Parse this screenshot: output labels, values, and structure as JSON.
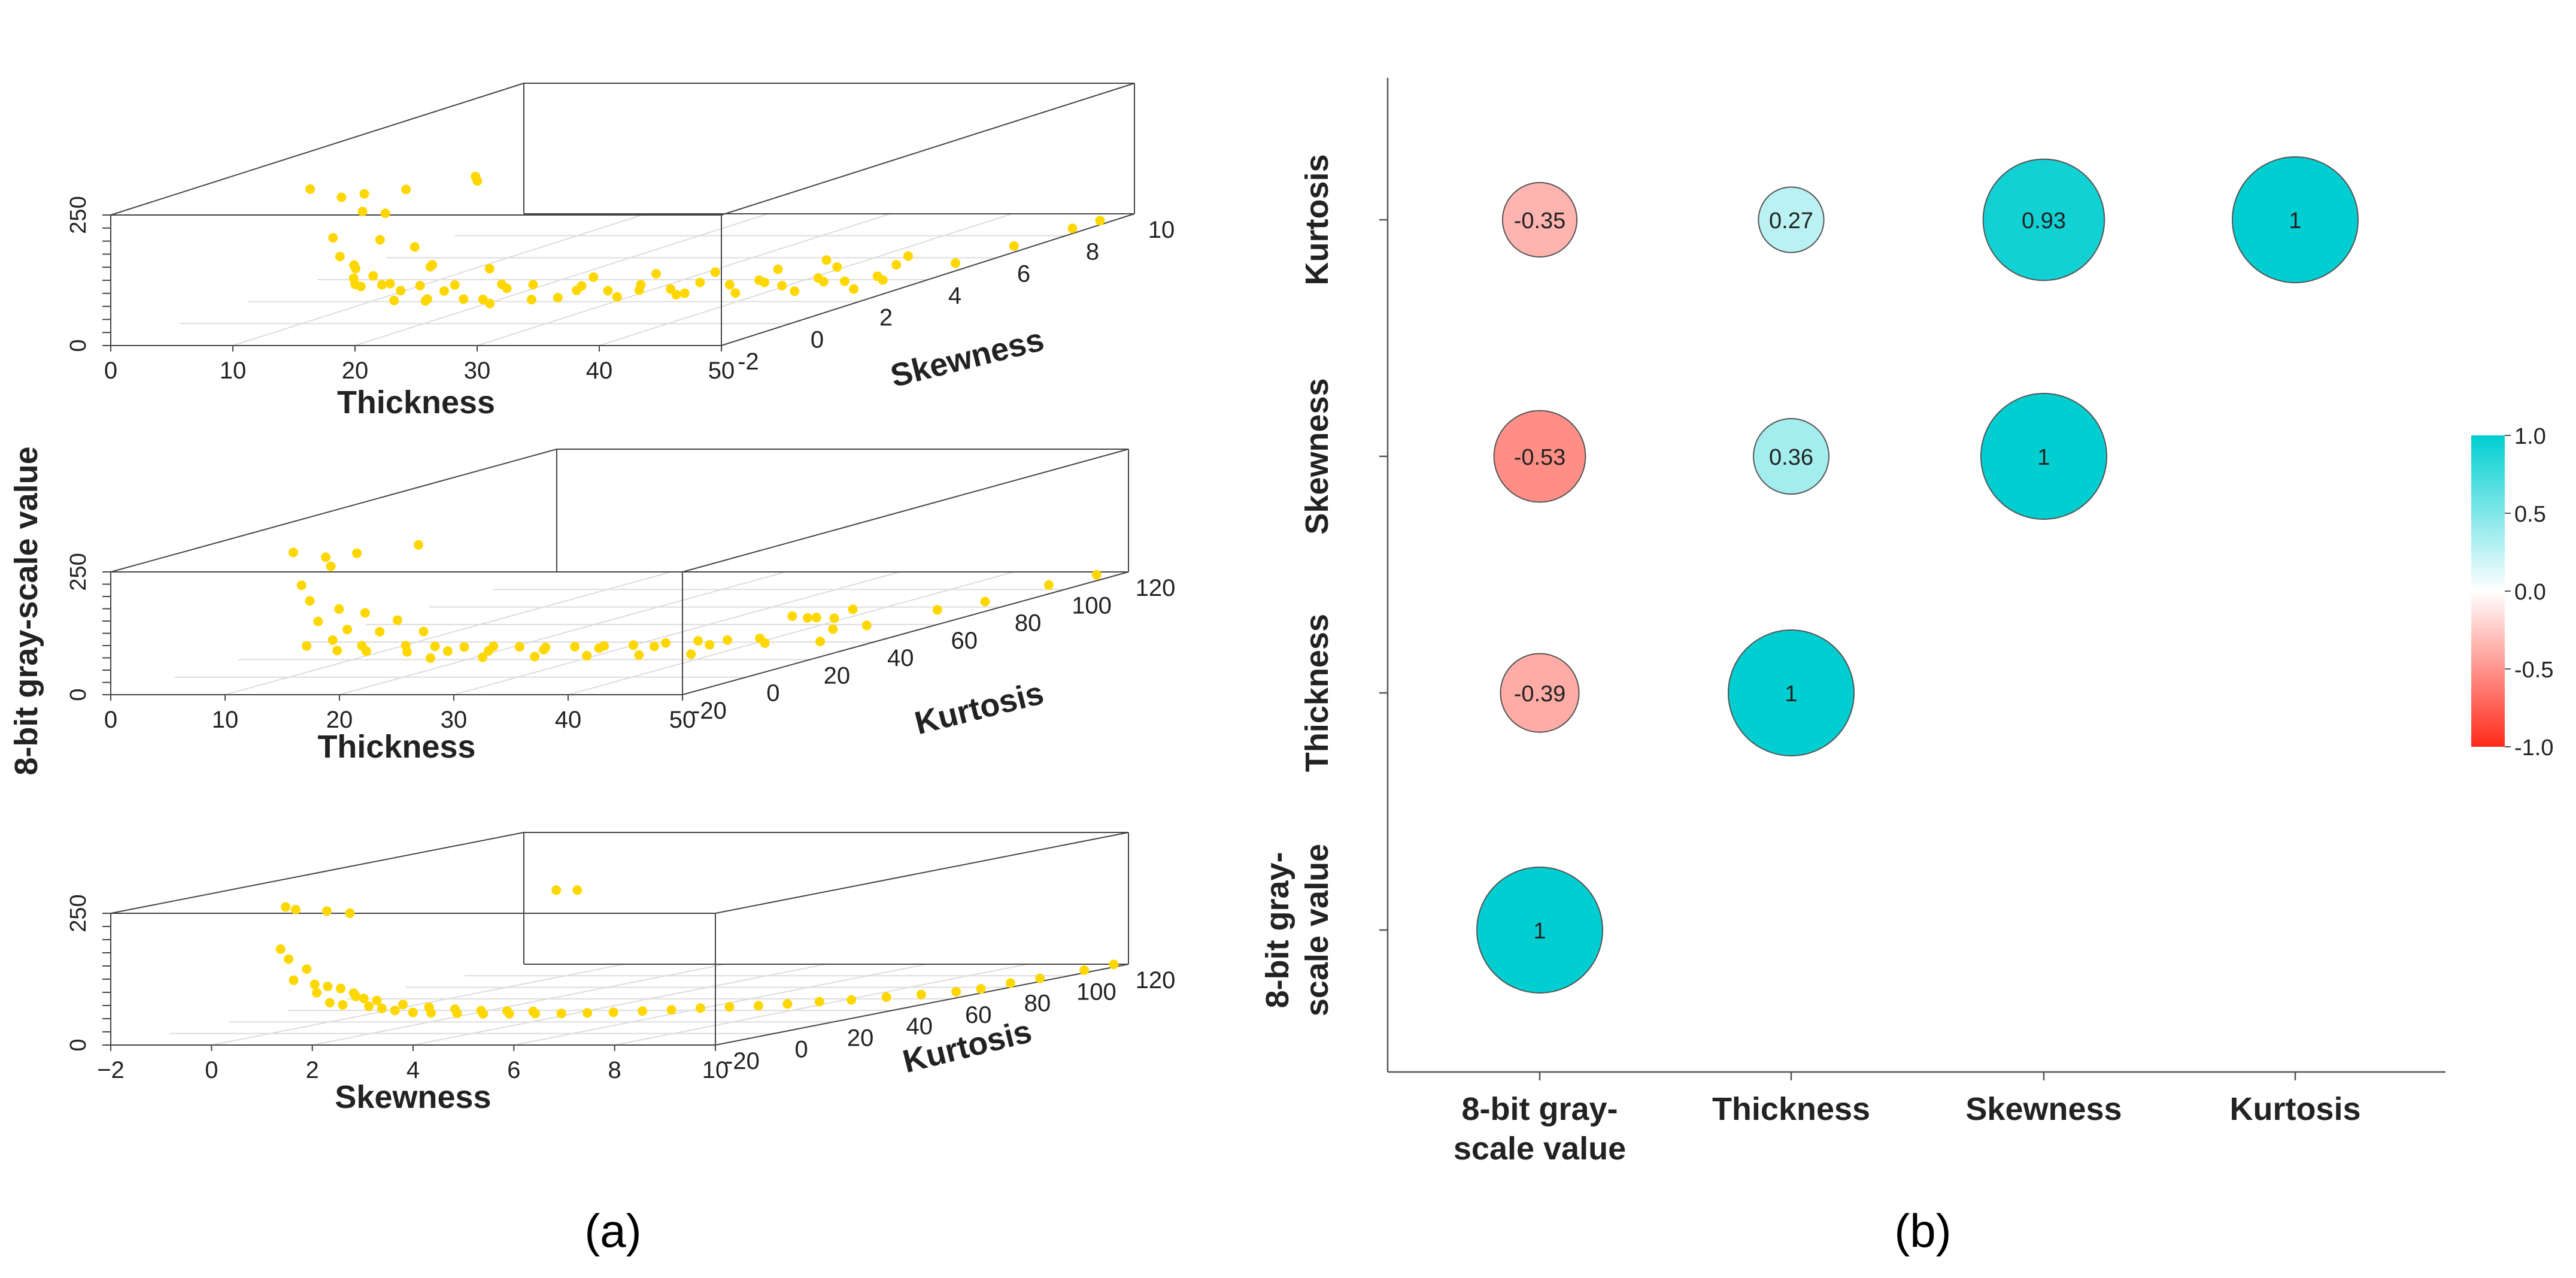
{
  "figure": {
    "panel_a_label": "(a)",
    "panel_b_label": "(b)",
    "shared_z_label": "8-bit gray-scale value"
  },
  "chart_data": [
    {
      "type": "scatter",
      "panel": "a1",
      "xlabel": "Thickness",
      "ylabel": "Skewness",
      "zlabel": "8-bit gray-scale value",
      "xlim": [
        0,
        50
      ],
      "ylim": [
        -2,
        10
      ],
      "zlim": [
        0,
        250
      ],
      "x_ticks": [
        "0",
        "10",
        "20",
        "30",
        "40",
        "50"
      ],
      "y_ticks": [
        "-2",
        "0",
        "2",
        "4",
        "6",
        "8",
        "10"
      ],
      "z_ticks": [
        "0",
        "250"
      ],
      "color": "#FFD700",
      "points": [
        [
          9,
          0.6,
          245
        ],
        [
          11,
          0.8,
          225
        ],
        [
          14,
          0.4,
          240
        ],
        [
          16,
          0.9,
          238
        ],
        [
          20,
          1.5,
          250
        ],
        [
          21,
          1.2,
          248
        ],
        [
          13,
          0.7,
          200
        ],
        [
          16,
          0.3,
          205
        ],
        [
          12,
          0.2,
          160
        ],
        [
          15,
          0.5,
          150
        ],
        [
          12,
          0.4,
          120
        ],
        [
          14,
          0.1,
          110
        ],
        [
          17,
          0.8,
          130
        ],
        [
          19,
          0.6,
          100
        ],
        [
          15,
          0.3,
          85
        ],
        [
          18,
          0.9,
          90
        ],
        [
          22,
          1.2,
          80
        ],
        [
          13,
          0.5,
          95
        ],
        [
          16,
          0.2,
          70
        ],
        [
          18,
          0.6,
          60
        ],
        [
          20,
          0.9,
          55
        ],
        [
          23,
          1.2,
          50
        ],
        [
          25,
          1.4,
          45
        ],
        [
          12,
          0.8,
          70
        ],
        [
          14,
          0.3,
          65
        ],
        [
          17,
          0.2,
          40
        ],
        [
          19,
          0.4,
          35
        ],
        [
          21,
          0.8,
          30
        ],
        [
          24,
          0.5,
          28
        ],
        [
          26,
          1.0,
          25
        ],
        [
          28,
          1.6,
          30
        ],
        [
          30,
          1.8,
          25
        ],
        [
          32,
          2.0,
          22
        ],
        [
          34,
          2.2,
          20
        ],
        [
          36,
          1.9,
          18
        ],
        [
          38,
          2.5,
          22
        ],
        [
          40,
          2.8,
          20
        ],
        [
          42,
          2.6,
          18
        ],
        [
          44,
          3.1,
          15
        ],
        [
          46,
          3.0,
          18
        ],
        [
          48,
          3.4,
          12
        ],
        [
          11,
          1.2,
          50
        ],
        [
          13,
          1.5,
          45
        ],
        [
          15,
          1.1,
          40
        ],
        [
          18,
          1.3,
          35
        ],
        [
          22,
          1.7,
          32
        ],
        [
          27,
          2.1,
          28
        ],
        [
          31,
          2.4,
          24
        ],
        [
          35,
          2.7,
          22
        ],
        [
          39,
          3.0,
          20
        ],
        [
          43,
          3.3,
          18
        ],
        [
          47,
          3.6,
          15
        ],
        [
          20,
          0.1,
          45
        ],
        [
          24,
          0.3,
          40
        ],
        [
          29,
          0.7,
          35
        ],
        [
          33,
          1.0,
          30
        ],
        [
          37,
          1.3,
          28
        ],
        [
          41,
          1.6,
          25
        ],
        [
          45,
          1.9,
          22
        ],
        [
          49,
          2.2,
          20
        ],
        [
          26,
          2.8,
          30
        ],
        [
          30,
          3.2,
          28
        ],
        [
          34,
          3.5,
          25
        ],
        [
          38,
          3.9,
          22
        ],
        [
          42,
          4.2,
          20
        ],
        [
          46,
          4.5,
          18
        ],
        [
          50,
          4.8,
          15
        ],
        [
          50,
          6.5,
          12
        ],
        [
          50,
          8.2,
          10
        ],
        [
          50,
          9.0,
          8
        ],
        [
          45,
          5.2,
          20
        ],
        [
          40,
          4.6,
          25
        ]
      ]
    },
    {
      "type": "scatter",
      "panel": "a2",
      "xlabel": "Thickness",
      "ylabel": "Kurtosis",
      "zlabel": "8-bit gray-scale value",
      "xlim": [
        0,
        50
      ],
      "ylim": [
        -20,
        120
      ],
      "zlim": [
        0,
        250
      ],
      "x_ticks": [
        "0",
        "10",
        "20",
        "30",
        "40",
        "50"
      ],
      "y_ticks": [
        "-20",
        "0",
        "20",
        "40",
        "60",
        "80",
        "100",
        "120"
      ],
      "z_ticks": [
        "0",
        "250"
      ],
      "color": "#FFD700",
      "points": [
        [
          9,
          5,
          245
        ],
        [
          11,
          8,
          230
        ],
        [
          12,
          6,
          215
        ],
        [
          14,
          7,
          240
        ],
        [
          18,
          12,
          248
        ],
        [
          10,
          4,
          180
        ],
        [
          11,
          3,
          150
        ],
        [
          13,
          5,
          130
        ],
        [
          12,
          2,
          110
        ],
        [
          15,
          6,
          120
        ],
        [
          17,
          9,
          100
        ],
        [
          14,
          4,
          90
        ],
        [
          16,
          7,
          80
        ],
        [
          19,
          10,
          75
        ],
        [
          13,
          3,
          70
        ],
        [
          11,
          2,
          60
        ],
        [
          15,
          5,
          55
        ],
        [
          18,
          8,
          50
        ],
        [
          20,
          10,
          45
        ],
        [
          22,
          12,
          40
        ],
        [
          24,
          14,
          38
        ],
        [
          26,
          15,
          35
        ],
        [
          28,
          16,
          32
        ],
        [
          30,
          18,
          30
        ],
        [
          32,
          20,
          28
        ],
        [
          34,
          22,
          26
        ],
        [
          36,
          25,
          25
        ],
        [
          38,
          28,
          24
        ],
        [
          40,
          30,
          22
        ],
        [
          42,
          33,
          20
        ],
        [
          44,
          36,
          60
        ],
        [
          45,
          40,
          50
        ],
        [
          46,
          42,
          45
        ],
        [
          47,
          38,
          30
        ],
        [
          48,
          45,
          25
        ],
        [
          12,
          8,
          40
        ],
        [
          14,
          10,
          35
        ],
        [
          17,
          12,
          30
        ],
        [
          20,
          14,
          28
        ],
        [
          23,
          16,
          25
        ],
        [
          27,
          19,
          22
        ],
        [
          31,
          22,
          20
        ],
        [
          35,
          25,
          18
        ],
        [
          39,
          28,
          16
        ],
        [
          43,
          31,
          14
        ],
        [
          47,
          34,
          12
        ],
        [
          21,
          5,
          30
        ],
        [
          25,
          7,
          28
        ],
        [
          29,
          9,
          26
        ],
        [
          33,
          11,
          24
        ],
        [
          37,
          13,
          22
        ],
        [
          41,
          15,
          20
        ],
        [
          50,
          60,
          30
        ],
        [
          50,
          75,
          20
        ],
        [
          50,
          95,
          18
        ],
        [
          50,
          110,
          12
        ],
        [
          44,
          55,
          40
        ],
        [
          42,
          48,
          35
        ]
      ]
    },
    {
      "type": "scatter",
      "panel": "a3",
      "xlabel": "Skewness",
      "ylabel": "Kurtosis",
      "zlabel": "8-bit gray-scale value",
      "xlim": [
        -2,
        10
      ],
      "ylim": [
        -20,
        120
      ],
      "zlim": [
        0,
        250
      ],
      "x_ticks": [
        "−2",
        "0",
        "2",
        "4",
        "6",
        "8",
        "10"
      ],
      "y_ticks": [
        "-20",
        "0",
        "20",
        "40",
        "60",
        "80",
        "100",
        "120"
      ],
      "z_ticks": [
        "0",
        "250"
      ],
      "color": "#FFD700",
      "points": [
        [
          0.3,
          0,
          240
        ],
        [
          0.5,
          0,
          235
        ],
        [
          1.0,
          2,
          230
        ],
        [
          1.4,
          3,
          225
        ],
        [
          4.5,
          20,
          250
        ],
        [
          4.8,
          22,
          248
        ],
        [
          0.2,
          0,
          160
        ],
        [
          0.3,
          1,
          140
        ],
        [
          0.6,
          2,
          120
        ],
        [
          0.4,
          1,
          100
        ],
        [
          0.7,
          3,
          90
        ],
        [
          0.9,
          4,
          85
        ],
        [
          1.1,
          5,
          80
        ],
        [
          1.3,
          6,
          70
        ],
        [
          1.5,
          6,
          60
        ],
        [
          0.8,
          2,
          75
        ],
        [
          1.0,
          3,
          55
        ],
        [
          1.2,
          4,
          50
        ],
        [
          1.6,
          6,
          45
        ],
        [
          1.8,
          7,
          40
        ],
        [
          2.0,
          8,
          35
        ],
        [
          2.3,
          9,
          30
        ],
        [
          2.6,
          10,
          28
        ],
        [
          3.0,
          12,
          25
        ],
        [
          3.4,
          14,
          22
        ],
        [
          3.8,
          16,
          20
        ],
        [
          4.2,
          18,
          18
        ],
        [
          4.6,
          20,
          16
        ],
        [
          5.0,
          22,
          15
        ],
        [
          5.4,
          24,
          14
        ],
        [
          5.8,
          27,
          13
        ],
        [
          6.2,
          30,
          12
        ],
        [
          6.6,
          33,
          12
        ],
        [
          7.0,
          36,
          11
        ],
        [
          7.4,
          39,
          10
        ],
        [
          7.8,
          42,
          10
        ],
        [
          8.2,
          46,
          10
        ],
        [
          8.6,
          50,
          9
        ],
        [
          9.0,
          55,
          9
        ],
        [
          9.4,
          60,
          8
        ],
        [
          9.8,
          65,
          8
        ],
        [
          10,
          70,
          8
        ],
        [
          10,
          80,
          8
        ],
        [
          10,
          90,
          6
        ],
        [
          10,
          105,
          5
        ],
        [
          10,
          115,
          5
        ],
        [
          1.4,
          5,
          65
        ],
        [
          1.7,
          7,
          55
        ],
        [
          2.1,
          9,
          45
        ],
        [
          2.5,
          11,
          38
        ],
        [
          2.9,
          13,
          32
        ],
        [
          3.3,
          15,
          27
        ],
        [
          3.7,
          17,
          24
        ],
        [
          4.1,
          19,
          21
        ]
      ]
    },
    {
      "type": "heatmap",
      "panel": "b",
      "style": "correlation bubble matrix",
      "variables": [
        "8-bit gray-scale value",
        "Thickness",
        "Skewness",
        "Kurtosis"
      ],
      "x_tick_labels": [
        [
          "8-bit gray-",
          "scale value"
        ],
        [
          "Thickness"
        ],
        [
          "Skewness"
        ],
        [
          "Kurtosis"
        ]
      ],
      "y_tick_labels": [
        [
          "8-bit gray-",
          "scale value"
        ],
        [
          "Thickness"
        ],
        [
          "Skewness"
        ],
        [
          "Kurtosis"
        ]
      ],
      "cells": [
        {
          "row": "Kurtosis",
          "col": "8-bit gray-scale value",
          "value": -0.35,
          "label": "-0.35"
        },
        {
          "row": "Kurtosis",
          "col": "Thickness",
          "value": 0.27,
          "label": "0.27"
        },
        {
          "row": "Kurtosis",
          "col": "Skewness",
          "value": 0.93,
          "label": "0.93"
        },
        {
          "row": "Kurtosis",
          "col": "Kurtosis",
          "value": 1,
          "label": "1"
        },
        {
          "row": "Skewness",
          "col": "8-bit gray-scale value",
          "value": -0.53,
          "label": "-0.53"
        },
        {
          "row": "Skewness",
          "col": "Thickness",
          "value": 0.36,
          "label": "0.36"
        },
        {
          "row": "Skewness",
          "col": "Skewness",
          "value": 1,
          "label": "1"
        },
        {
          "row": "Thickness",
          "col": "8-bit gray-scale value",
          "value": -0.39,
          "label": "-0.39"
        },
        {
          "row": "Thickness",
          "col": "Thickness",
          "value": 1,
          "label": "1"
        },
        {
          "row": "8-bit gray-scale value",
          "col": "8-bit gray-scale value",
          "value": 1,
          "label": "1"
        }
      ],
      "colorbar": {
        "range": [
          -1,
          1
        ],
        "ticks": [
          "1.0",
          "0.5",
          "0.0",
          "-0.5",
          "-1.0"
        ],
        "positive_color": "#00CED1",
        "neutral_color": "#FFFFFF",
        "negative_color": "#FF2A1A"
      }
    }
  ]
}
